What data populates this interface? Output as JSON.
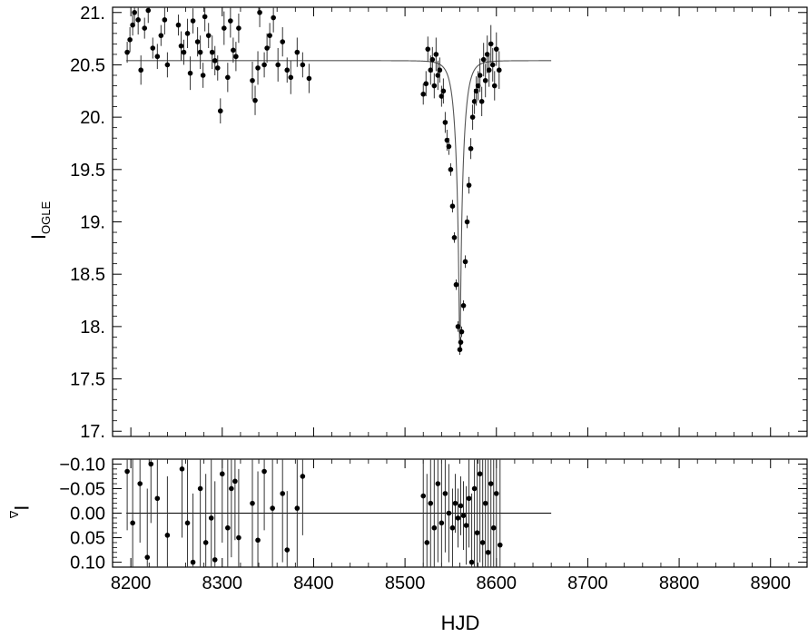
{
  "chart_data": [
    {
      "type": "scatter",
      "panel": "top",
      "ylabel_main": "I",
      "ylabel_sub": "OGLE",
      "xlim": [
        8180,
        8940
      ],
      "ylim": [
        21.05,
        16.95
      ],
      "y_inverted": true,
      "yticks": [
        17.0,
        17.5,
        18.0,
        18.5,
        19.0,
        19.5,
        20.0,
        20.5,
        21.0
      ],
      "ytick_labels": [
        "17.",
        "17.5",
        "18.",
        "18.5",
        "19.",
        "19.5",
        "20.",
        "20.5",
        "21."
      ],
      "model_line": {
        "description": "point-lens microlensing fit",
        "baseline": 20.54,
        "t0": 8560,
        "tE": 9,
        "peak": 17.75,
        "x_range": [
          8195,
          8660
        ]
      },
      "series": [
        {
          "points": [
            [
              8196,
              20.62,
              0.1
            ],
            [
              8199,
              20.74,
              0.12
            ],
            [
              8202,
              20.88,
              0.1
            ],
            [
              8204,
              21.0,
              0.12
            ],
            [
              8208,
              20.93,
              0.14
            ],
            [
              8211,
              20.45,
              0.14
            ],
            [
              8215,
              20.85,
              0.1
            ],
            [
              8219,
              21.02,
              0.12
            ],
            [
              8224,
              20.66,
              0.1
            ],
            [
              8229,
              20.58,
              0.12
            ],
            [
              8233,
              20.78,
              0.1
            ],
            [
              8237,
              20.93,
              0.14
            ],
            [
              8240,
              20.5,
              0.12
            ],
            [
              8252,
              20.88,
              0.1
            ],
            [
              8255,
              20.68,
              0.14
            ],
            [
              8258,
              20.62,
              0.12
            ],
            [
              8262,
              20.8,
              0.14
            ],
            [
              8265,
              20.42,
              0.16
            ],
            [
              8268,
              20.92,
              0.12
            ],
            [
              8273,
              20.72,
              0.14
            ],
            [
              8276,
              20.62,
              0.16
            ],
            [
              8279,
              20.4,
              0.12
            ],
            [
              8281,
              20.96,
              0.14
            ],
            [
              8285,
              20.78,
              0.12
            ],
            [
              8289,
              20.62,
              0.16
            ],
            [
              8292,
              20.54,
              0.14
            ],
            [
              8295,
              20.47,
              0.12
            ],
            [
              8298,
              20.06,
              0.12
            ],
            [
              8302,
              20.85,
              0.16
            ],
            [
              8306,
              20.38,
              0.14
            ],
            [
              8309,
              20.92,
              0.16
            ],
            [
              8312,
              20.64,
              0.12
            ],
            [
              8315,
              20.58,
              0.14
            ],
            [
              8318,
              20.85,
              0.14
            ],
            [
              8333,
              20.35,
              0.18
            ],
            [
              8336,
              20.16,
              0.14
            ],
            [
              8339,
              20.47,
              0.16
            ],
            [
              8341,
              21.0,
              0.14
            ],
            [
              8346,
              20.5,
              0.12
            ],
            [
              8349,
              20.66,
              0.14
            ],
            [
              8352,
              20.78,
              0.12
            ],
            [
              8356,
              20.95,
              0.14
            ],
            [
              8361,
              20.5,
              0.16
            ],
            [
              8366,
              20.72,
              0.14
            ],
            [
              8371,
              20.45,
              0.12
            ],
            [
              8375,
              20.38,
              0.16
            ],
            [
              8382,
              20.62,
              0.14
            ],
            [
              8388,
              20.5,
              0.12
            ],
            [
              8395,
              20.37,
              0.14
            ],
            [
              8520,
              20.22,
              0.1
            ],
            [
              8523,
              20.32,
              0.12
            ],
            [
              8525,
              20.65,
              0.12
            ],
            [
              8528,
              20.45,
              0.14
            ],
            [
              8530,
              20.55,
              0.12
            ],
            [
              8532,
              20.3,
              0.12
            ],
            [
              8534,
              20.6,
              0.16
            ],
            [
              8536,
              20.4,
              0.14
            ],
            [
              8538,
              20.45,
              0.12
            ],
            [
              8540,
              20.2,
              0.1
            ],
            [
              8542,
              20.25,
              0.12
            ],
            [
              8544,
              19.95,
              0.1
            ],
            [
              8546,
              19.78,
              0.1
            ],
            [
              8548,
              19.72,
              0.08
            ],
            [
              8550,
              19.5,
              0.06
            ],
            [
              8552,
              19.15,
              0.06
            ],
            [
              8554,
              18.85,
              0.05
            ],
            [
              8556,
              18.4,
              0.05
            ],
            [
              8558,
              18.0,
              0.05
            ],
            [
              8560,
              17.78,
              0.05
            ],
            [
              8561,
              17.85,
              0.05
            ],
            [
              8562,
              17.95,
              0.05
            ],
            [
              8564,
              18.2,
              0.05
            ],
            [
              8566,
              18.62,
              0.06
            ],
            [
              8568,
              19.0,
              0.06
            ],
            [
              8570,
              19.35,
              0.08
            ],
            [
              8572,
              19.7,
              0.1
            ],
            [
              8574,
              20.0,
              0.12
            ],
            [
              8576,
              20.15,
              0.12
            ],
            [
              8578,
              20.25,
              0.14
            ],
            [
              8580,
              20.3,
              0.14
            ],
            [
              8582,
              20.4,
              0.16
            ],
            [
              8584,
              20.15,
              0.14
            ],
            [
              8586,
              20.55,
              0.16
            ],
            [
              8588,
              20.35,
              0.16
            ],
            [
              8590,
              20.6,
              0.18
            ],
            [
              8592,
              20.45,
              0.16
            ],
            [
              8594,
              20.7,
              0.18
            ],
            [
              8596,
              20.5,
              0.16
            ],
            [
              8598,
              20.3,
              0.14
            ],
            [
              8600,
              20.65,
              0.16
            ],
            [
              8603,
              20.45,
              0.18
            ]
          ]
        }
      ]
    },
    {
      "type": "scatter",
      "panel": "bottom",
      "ylabel_main": "I",
      "ylabel_sub": "Δ",
      "xlabel": "HJD",
      "xlim": [
        8180,
        8940
      ],
      "ylim": [
        -0.11,
        0.11
      ],
      "xticks": [
        8200,
        8300,
        8400,
        8500,
        8600,
        8700,
        8800,
        8900
      ],
      "xtick_labels": [
        "8200",
        "8300",
        "8400",
        "8500",
        "8600",
        "8700",
        "8800",
        "8900"
      ],
      "yticks": [
        0.1,
        0.05,
        0.0,
        -0.05,
        -0.1
      ],
      "ytick_labels": [
        "0.10",
        "0.05",
        "0.00",
        "−0.05",
        "−0.10"
      ],
      "zero_line_x_range": [
        8195,
        8660
      ],
      "series": [
        {
          "points": [
            [
              8196,
              -0.085,
              0.12
            ],
            [
              8202,
              0.02,
              0.14
            ],
            [
              8210,
              -0.06,
              0.12
            ],
            [
              8218,
              0.09,
              0.14
            ],
            [
              8222,
              -0.1,
              0.12
            ],
            [
              8229,
              -0.03,
              0.14
            ],
            [
              8240,
              0.045,
              0.12
            ],
            [
              8256,
              -0.09,
              0.14
            ],
            [
              8262,
              0.02,
              0.16
            ],
            [
              8268,
              0.1,
              0.14
            ],
            [
              8276,
              -0.05,
              0.16
            ],
            [
              8282,
              0.06,
              0.14
            ],
            [
              8288,
              0.01,
              0.12
            ],
            [
              8292,
              0.095,
              0.16
            ],
            [
              8300,
              -0.08,
              0.14
            ],
            [
              8306,
              0.03,
              0.16
            ],
            [
              8310,
              -0.05,
              0.14
            ],
            [
              8314,
              -0.065,
              0.12
            ],
            [
              8318,
              0.05,
              0.14
            ],
            [
              8333,
              -0.02,
              0.16
            ],
            [
              8339,
              0.055,
              0.14
            ],
            [
              8346,
              -0.085,
              0.12
            ],
            [
              8355,
              -0.01,
              0.16
            ],
            [
              8366,
              -0.04,
              0.14
            ],
            [
              8371,
              0.075,
              0.12
            ],
            [
              8382,
              -0.01,
              0.14
            ],
            [
              8388,
              -0.075,
              0.12
            ],
            [
              8520,
              -0.035,
              0.16
            ],
            [
              8524,
              0.06,
              0.14
            ],
            [
              8528,
              -0.02,
              0.16
            ],
            [
              8532,
              0.03,
              0.18
            ],
            [
              8536,
              -0.06,
              0.16
            ],
            [
              8540,
              0.02,
              0.14
            ],
            [
              8544,
              -0.04,
              0.12
            ],
            [
              8548,
              0.0,
              0.1
            ],
            [
              8552,
              0.03,
              0.08
            ],
            [
              8555,
              -0.02,
              0.06
            ],
            [
              8558,
              0.01,
              0.06
            ],
            [
              8561,
              -0.015,
              0.06
            ],
            [
              8564,
              0.005,
              0.07
            ],
            [
              8567,
              0.025,
              0.08
            ],
            [
              8570,
              -0.03,
              0.1
            ],
            [
              8573,
              0.1,
              0.14
            ],
            [
              8576,
              -0.05,
              0.16
            ],
            [
              8579,
              0.04,
              0.18
            ],
            [
              8582,
              -0.08,
              0.18
            ],
            [
              8585,
              0.06,
              0.2
            ],
            [
              8588,
              -0.02,
              0.2
            ],
            [
              8591,
              0.08,
              0.2
            ],
            [
              8594,
              -0.06,
              0.2
            ],
            [
              8597,
              0.03,
              0.2
            ],
            [
              8600,
              -0.04,
              0.2
            ],
            [
              8604,
              0.065,
              0.18
            ]
          ]
        }
      ]
    }
  ]
}
